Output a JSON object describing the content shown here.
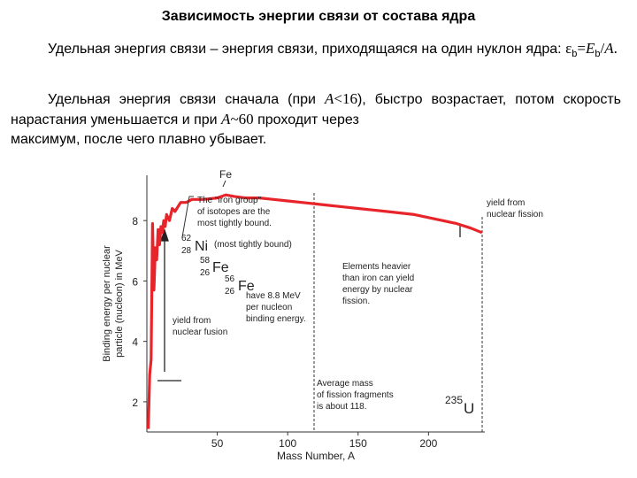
{
  "header": {
    "title": "Зависимость энергии связи от состава ядра"
  },
  "paragraph1": {
    "text": "Удельная энергия связи – энергия связи, приходящаяся на один нуклон ядра:",
    "formula": {
      "eps": "ε",
      "eps_sub": "b",
      "eq": "=",
      "E": "E",
      "E_sub": "b",
      "div": "/",
      "A": "A",
      "end": "."
    }
  },
  "paragraph2": {
    "line1_a": "Удельная энергия связи сначала (при ",
    "line1_A": "A",
    "line1_val": "<16",
    "line1_b": "), быстро возрастает,",
    "line2_a": "потом скорость нарастания уменьшается и при ",
    "line2_A": "A",
    "line2_val": "~60",
    "line2_b": " проходит через",
    "line3": "максимум, после чего плавно убывает."
  },
  "figure": {
    "ylabel_line1": "Binding energy per nuclear",
    "ylabel_line2": "particle (nucleon) in MeV",
    "xlabel": "Mass Number, A",
    "yticks": [
      "2",
      "4",
      "6",
      "8"
    ],
    "xticks": [
      "50",
      "100",
      "150",
      "200"
    ],
    "annotations": {
      "fe_top": "Fe",
      "iron_group": [
        "The \"iron group\"",
        "of isotopes are the",
        "most tightly bound."
      ],
      "ni_mass": "62",
      "ni_z": "28",
      "ni_sym": "Ni",
      "ni_note": "(most tightly bound)",
      "fe58_mass": "58",
      "fe58_z": "26",
      "fe58_sym": "Fe",
      "fe56_mass": "56",
      "fe56_z": "26",
      "fe56_sym": "Fe",
      "fe56_note": [
        "have 8.8 MeV",
        "per nucleon",
        "binding energy."
      ],
      "fusion": [
        "yield from",
        "nuclear fusion"
      ],
      "fission": [
        "yield from",
        "nuclear fission"
      ],
      "heavier": [
        "Elements heavier",
        "than iron can yield",
        "energy by nuclear",
        "fission."
      ],
      "avg_mass": [
        "Average mass",
        "of fission fragments",
        "is about 118."
      ],
      "u_mass": "235",
      "u_sym": "U"
    },
    "chart_data": {
      "type": "line",
      "xlabel": "Mass Number, A",
      "ylabel": "Binding energy per nuclear particle (nucleon) in MeV",
      "xlim": [
        0,
        240
      ],
      "ylim": [
        1,
        9.5
      ],
      "xticks": [
        50,
        100,
        150,
        200
      ],
      "yticks": [
        2,
        4,
        6,
        8
      ],
      "series": [
        {
          "color": "#e8242b",
          "x": [
            1,
            2,
            3,
            4,
            5,
            6,
            7,
            8,
            9,
            10,
            11,
            12,
            13,
            14,
            16,
            18,
            20,
            24,
            28,
            32,
            40,
            50,
            56,
            62,
            70,
            80,
            90,
            100,
            110,
            120,
            130,
            140,
            150,
            160,
            170,
            180,
            190,
            200,
            210,
            220,
            230,
            238
          ],
          "y": [
            1.1,
            2.9,
            3.4,
            7.9,
            5.7,
            7.1,
            6.7,
            7.7,
            7.2,
            7.8,
            7.6,
            8.0,
            7.8,
            8.2,
            8.0,
            8.4,
            8.3,
            8.6,
            8.6,
            8.7,
            8.7,
            8.75,
            8.85,
            8.8,
            8.75,
            8.75,
            8.7,
            8.65,
            8.6,
            8.55,
            8.5,
            8.45,
            8.4,
            8.35,
            8.3,
            8.25,
            8.2,
            8.1,
            8.0,
            7.9,
            7.75,
            7.6
          ]
        }
      ],
      "reference_lines": [
        {
          "type": "vertical",
          "x": 118,
          "style": "dashed"
        },
        {
          "type": "vertical",
          "x": 235,
          "style": "dashed"
        }
      ],
      "grid": false
    }
  }
}
